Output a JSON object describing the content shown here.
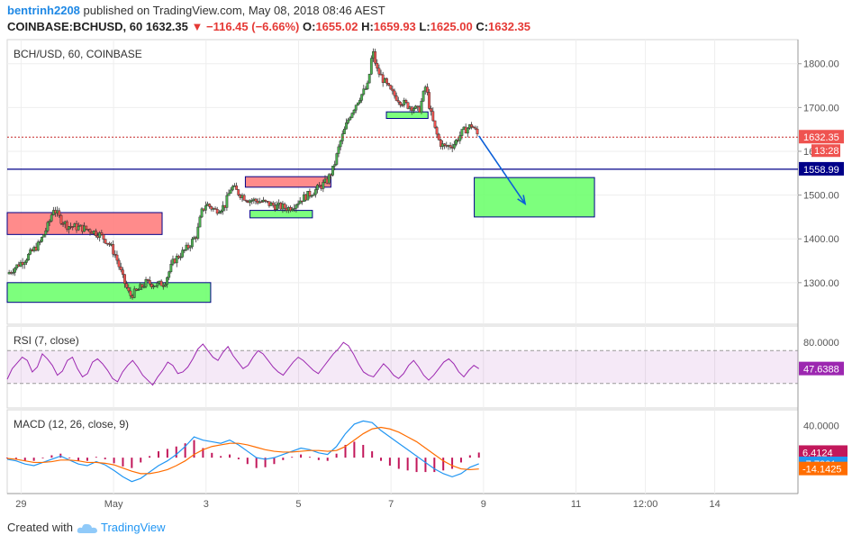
{
  "header": {
    "username": "bentrinh2208",
    "published_text": "published on TradingView.com, May 08, 2018 08:46 AEST",
    "symbol": "COINBASE:BCHUSD, 60",
    "last": "1632.35",
    "change": "−116.45 (−6.66%)",
    "o_label": "O:",
    "o_value": "1655.02",
    "h_label": "H:",
    "h_value": "1659.93",
    "l_label": "L:",
    "l_value": "1625.00",
    "c_label": "C:",
    "c_value": "1632.35"
  },
  "colors": {
    "up": "#26a69a",
    "up_bright": "#4caf50",
    "down": "#ef5350",
    "rsi": "#9c27b0",
    "macd_line": "#2196f3",
    "signal_line": "#ff6d00",
    "hist": "#c2185b",
    "demand_zone": "#66ff66",
    "supply_zone": "#ff7777",
    "support_line": "#000088",
    "arrow": "#0b5fd8",
    "price_line": "#c62828"
  },
  "footer": {
    "created_with": "Created with",
    "brand": "TradingView"
  },
  "chart_data": [
    {
      "type": "line",
      "title": "BCH/USD, 60, COINBASE",
      "y_ticks": [
        1300,
        1400,
        1500,
        1600,
        1700,
        1800
      ],
      "ylim": [
        1205,
        1855
      ],
      "x_ticks": [
        {
          "label": "29",
          "day": 0
        },
        {
          "label": "May",
          "day": 2
        },
        {
          "label": "3",
          "day": 4
        },
        {
          "label": "5",
          "day": 6
        },
        {
          "label": "7",
          "day": 8
        },
        {
          "label": "9",
          "day": 10
        },
        {
          "label": "11",
          "day": 12
        },
        {
          "label": "12:00",
          "day": 13.5
        },
        {
          "label": "14",
          "day": 15
        }
      ],
      "x_range_days": [
        -0.3,
        16.8
      ],
      "price_path": [
        [
          -0.3,
          1320
        ],
        [
          0.1,
          1355
        ],
        [
          0.4,
          1390
        ],
        [
          0.6,
          1435
        ],
        [
          0.7,
          1470
        ],
        [
          0.85,
          1445
        ],
        [
          1.0,
          1430
        ],
        [
          1.3,
          1425
        ],
        [
          1.5,
          1420
        ],
        [
          1.7,
          1410
        ],
        [
          1.9,
          1390
        ],
        [
          2.05,
          1360
        ],
        [
          2.2,
          1310
        ],
        [
          2.35,
          1270
        ],
        [
          2.5,
          1280
        ],
        [
          2.7,
          1300
        ],
        [
          2.95,
          1295
        ],
        [
          3.1,
          1300
        ],
        [
          3.3,
          1350
        ],
        [
          3.6,
          1380
        ],
        [
          3.8,
          1410
        ],
        [
          3.9,
          1460
        ],
        [
          4.0,
          1480
        ],
        [
          4.2,
          1465
        ],
        [
          4.4,
          1475
        ],
        [
          4.55,
          1520
        ],
        [
          4.7,
          1505
        ],
        [
          4.9,
          1490
        ],
        [
          5.2,
          1485
        ],
        [
          5.5,
          1475
        ],
        [
          5.8,
          1470
        ],
        [
          6.05,
          1490
        ],
        [
          6.2,
          1500
        ],
        [
          6.35,
          1510
        ],
        [
          6.6,
          1530
        ],
        [
          6.75,
          1560
        ],
        [
          6.9,
          1620
        ],
        [
          7.1,
          1680
        ],
        [
          7.3,
          1720
        ],
        [
          7.5,
          1750
        ],
        [
          7.55,
          1790
        ],
        [
          7.6,
          1830
        ],
        [
          7.7,
          1785
        ],
        [
          7.85,
          1760
        ],
        [
          8.0,
          1735
        ],
        [
          8.2,
          1715
        ],
        [
          8.35,
          1705
        ],
        [
          8.5,
          1700
        ],
        [
          8.6,
          1690
        ],
        [
          8.75,
          1750
        ],
        [
          8.85,
          1690
        ],
        [
          8.95,
          1650
        ],
        [
          9.05,
          1620
        ],
        [
          9.15,
          1610
        ],
        [
          9.35,
          1615
        ],
        [
          9.55,
          1645
        ],
        [
          9.75,
          1660
        ],
        [
          9.9,
          1632.35
        ]
      ],
      "price_label": "1632.35",
      "countdown": "13:28",
      "support_level": 1558.99,
      "support_label": "1558.99",
      "zones": [
        {
          "kind": "supply",
          "x0": -0.3,
          "x1": 3.05,
          "y0": 1410,
          "y1": 1460
        },
        {
          "kind": "demand",
          "x0": -0.3,
          "x1": 4.1,
          "y0": 1255,
          "y1": 1300
        },
        {
          "kind": "supply",
          "x0": 4.85,
          "x1": 6.7,
          "y0": 1518,
          "y1": 1542
        },
        {
          "kind": "demand",
          "x0": 4.95,
          "x1": 6.3,
          "y0": 1448,
          "y1": 1465
        },
        {
          "kind": "demand",
          "x0": 7.9,
          "x1": 8.8,
          "y0": 1675,
          "y1": 1690
        },
        {
          "kind": "demand",
          "x0": 9.8,
          "x1": 12.4,
          "y0": 1450,
          "y1": 1540
        }
      ],
      "arrow": {
        "from": [
          9.9,
          1635
        ],
        "to": [
          10.9,
          1480
        ]
      }
    },
    {
      "type": "line",
      "title": "RSI (7, close)",
      "y_ticks": [
        80
      ],
      "ylim": [
        0,
        100
      ],
      "band": [
        30,
        70
      ],
      "values": [
        35,
        48,
        55,
        62,
        58,
        44,
        50,
        66,
        60,
        52,
        40,
        45,
        58,
        62,
        48,
        38,
        42,
        56,
        60,
        54,
        46,
        36,
        32,
        44,
        52,
        58,
        50,
        40,
        34,
        28,
        38,
        46,
        56,
        52,
        42,
        44,
        50,
        60,
        72,
        78,
        70,
        62,
        58,
        68,
        75,
        64,
        56,
        48,
        52,
        62,
        70,
        66,
        58,
        50,
        44,
        40,
        48,
        56,
        62,
        58,
        52,
        46,
        42,
        50,
        58,
        66,
        72,
        80,
        76,
        66,
        54,
        44,
        40,
        38,
        46,
        54,
        48,
        40,
        36,
        42,
        52,
        58,
        50,
        40,
        34,
        40,
        48,
        56,
        60,
        54,
        44,
        38,
        46,
        52,
        48
      ],
      "last_label": "47.6388"
    },
    {
      "type": "line",
      "title": "MACD (12, 26, close, 9)",
      "y_ticks": [
        40
      ],
      "ylim": [
        -45,
        60
      ],
      "macd": [
        -2,
        -4,
        -8,
        -10,
        -6,
        -2,
        2,
        -3,
        -8,
        -10,
        -5,
        -9,
        -16,
        -24,
        -30,
        -26,
        -18,
        -10,
        -4,
        4,
        14,
        26,
        22,
        20,
        18,
        22,
        16,
        8,
        0,
        -2,
        0,
        4,
        8,
        12,
        10,
        6,
        4,
        14,
        30,
        42,
        46,
        44,
        34,
        26,
        18,
        10,
        2,
        -6,
        -14,
        -20,
        -24,
        -20,
        -12,
        -7.73
      ],
      "signal": [
        -1,
        -2,
        -4,
        -6,
        -6,
        -5,
        -3,
        -3,
        -4,
        -6,
        -6,
        -7,
        -9,
        -13,
        -17,
        -20,
        -20,
        -18,
        -15,
        -10,
        -4,
        4,
        10,
        14,
        16,
        18,
        18,
        16,
        13,
        10,
        8,
        7,
        7,
        8,
        9,
        9,
        8,
        9,
        14,
        22,
        30,
        36,
        38,
        36,
        32,
        26,
        20,
        12,
        4,
        -4,
        -10,
        -14,
        -15,
        -14.14
      ],
      "macd_label": "-7.7301",
      "signal_label": "-14.1425",
      "hist_label": "6.4124"
    }
  ]
}
